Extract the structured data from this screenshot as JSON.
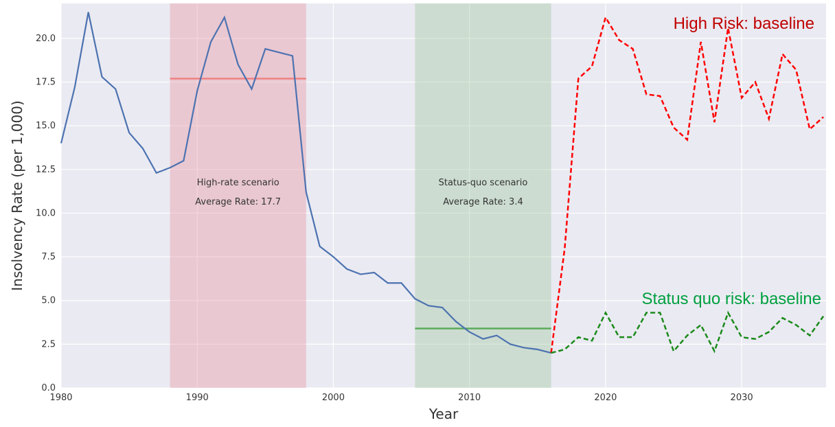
{
  "chart_data": {
    "type": "line",
    "x_label": "Year",
    "y_label": "Insolvency Rate (per 1,000)",
    "xlim": [
      1980,
      2036.2
    ],
    "ylim": [
      0,
      22
    ],
    "xticks": [
      1980,
      1990,
      2000,
      2010,
      2020,
      2030
    ],
    "yticks": [
      {
        "value": 0,
        "label": "0.0"
      },
      2.5,
      {
        "value": 5,
        "label": "5.0"
      },
      7.5,
      {
        "value": 10,
        "label": "10.0"
      },
      12.5,
      {
        "value": 15,
        "label": "15.0"
      },
      17.5,
      {
        "value": 20,
        "label": "20.0"
      }
    ],
    "grid": true,
    "spans": [
      {
        "x": [
          1988,
          1998
        ],
        "color": "#e8a0aa",
        "line_color": "#f08080",
        "average": 17.7,
        "label": "High-rate scenario",
        "average_label": "Average Rate: 17.7"
      },
      {
        "x": [
          2006,
          2016
        ],
        "color": "#a8cca8",
        "line_color": "#5aab5a",
        "average": 3.4,
        "label": "Status-quo scenario",
        "average_label": "Average Rate: 3.4"
      }
    ],
    "series": [
      {
        "color": "#4c72b0",
        "dashed": false,
        "x": [
          1980,
          1981,
          1982,
          1983,
          1984,
          1985,
          1986,
          1987,
          1988,
          1989,
          1990,
          1991,
          1992,
          1993,
          1994,
          1995,
          1996,
          1997,
          1998,
          1999,
          2000,
          2001,
          2002,
          2003,
          2004,
          2005,
          2006,
          2007,
          2008,
          2009,
          2010,
          2011,
          2012,
          2013,
          2014,
          2015,
          2016
        ],
        "values": [
          14.0,
          17.2,
          21.5,
          17.8,
          17.1,
          14.6,
          13.7,
          12.3,
          12.6,
          13.0,
          17.0,
          19.8,
          21.2,
          18.5,
          17.1,
          19.4,
          19.2,
          19.0,
          11.2,
          8.1,
          7.5,
          6.8,
          6.5,
          6.6,
          6.0,
          6.0,
          5.1,
          4.7,
          4.6,
          3.8,
          3.2,
          2.8,
          3.0,
          2.5,
          2.3,
          2.2,
          2.0
        ]
      },
      {
        "name": "High Risk: baseline",
        "color": "#ff0000",
        "label_color": "#c00000",
        "dashed": true,
        "x": [
          2016,
          2017,
          2018,
          2019,
          2020,
          2021,
          2022,
          2023,
          2024,
          2025,
          2026,
          2027,
          2028,
          2029,
          2030,
          2031,
          2032,
          2033,
          2034,
          2035,
          2036
        ],
        "values": [
          2.0,
          8.0,
          17.7,
          18.4,
          21.2,
          19.9,
          19.4,
          16.8,
          16.7,
          14.9,
          14.2,
          19.8,
          15.2,
          20.6,
          16.6,
          17.5,
          15.4,
          19.1,
          18.2,
          14.8,
          15.5
        ]
      },
      {
        "name": "Status quo risk: baseline",
        "color": "#1a8a1a",
        "label_color": "#00a040",
        "dashed": true,
        "x": [
          2016,
          2017,
          2018,
          2019,
          2020,
          2021,
          2022,
          2023,
          2024,
          2025,
          2026,
          2027,
          2028,
          2029,
          2030,
          2031,
          2032,
          2033,
          2034,
          2035,
          2036
        ],
        "values": [
          2.0,
          2.2,
          2.9,
          2.7,
          4.3,
          2.9,
          2.9,
          4.3,
          4.3,
          2.1,
          3.0,
          3.6,
          2.1,
          4.3,
          2.9,
          2.8,
          3.2,
          4.0,
          3.6,
          3.0,
          4.1
        ]
      }
    ]
  }
}
